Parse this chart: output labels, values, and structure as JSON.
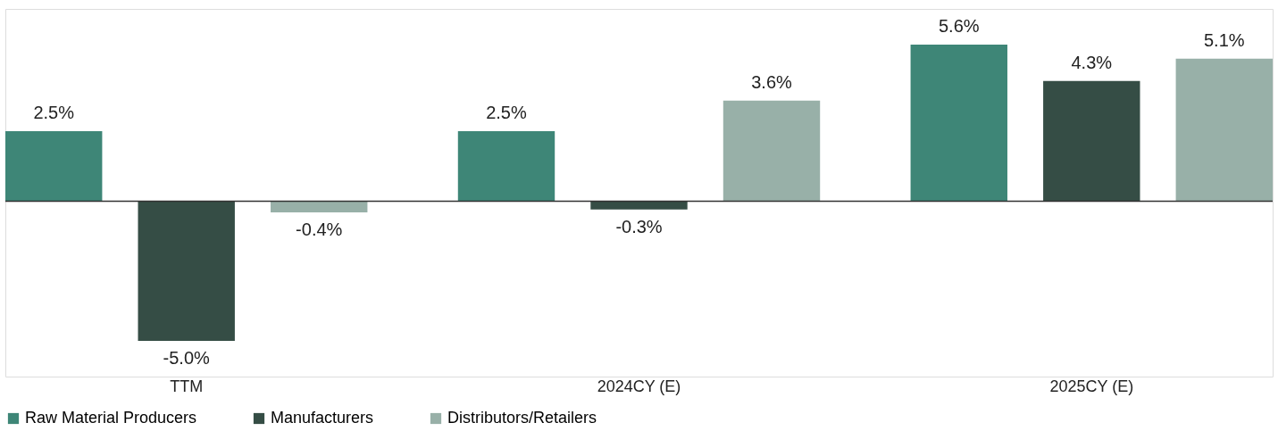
{
  "chart_data": {
    "type": "bar",
    "categories": [
      "TTM",
      "2024CY (E)",
      "2025CY (E)"
    ],
    "series": [
      {
        "name": "Raw Material Producers",
        "color": "#3e8677",
        "values": [
          2.5,
          2.5,
          5.6
        ],
        "value_labels": [
          "2.5%",
          "2.5%",
          "5.6%"
        ]
      },
      {
        "name": "Manufacturers",
        "color": "#354d45",
        "values": [
          -5.0,
          -0.3,
          4.3
        ],
        "value_labels": [
          "-5.0%",
          "-0.3%",
          "4.3%"
        ]
      },
      {
        "name": "Distributors/Retailers",
        "color": "#98b0a8",
        "values": [
          -0.4,
          3.6,
          5.1
        ],
        "value_labels": [
          "-0.4%",
          "3.6%",
          "5.1%"
        ]
      }
    ],
    "legend": "bottom",
    "grid": false
  }
}
